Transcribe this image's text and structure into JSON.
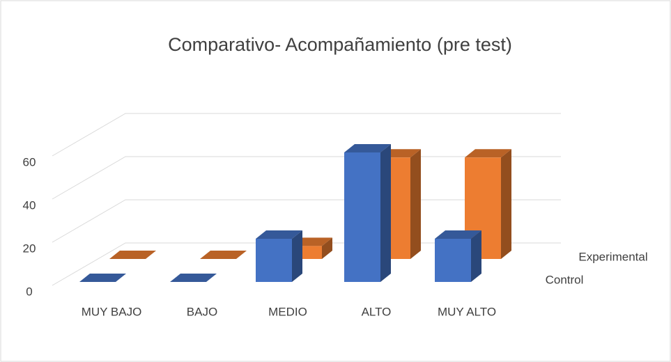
{
  "chart_data": {
    "type": "bar3d",
    "title": "Comparativo- Acompañamiento (pre test)",
    "categories": [
      "MUY BAJO",
      "BAJO",
      "MEDIO",
      "ALTO",
      "MUY ALTO"
    ],
    "series": [
      {
        "name": "Control",
        "color": "#4472c4",
        "values": [
          0,
          0,
          20,
          60,
          20
        ]
      },
      {
        "name": "Experimental",
        "color": "#ed7d31",
        "values": [
          0,
          0,
          6,
          47,
          47
        ]
      }
    ],
    "ylim": [
      0,
      60
    ],
    "yticks": [
      0,
      20,
      40,
      60
    ],
    "grid": true
  }
}
